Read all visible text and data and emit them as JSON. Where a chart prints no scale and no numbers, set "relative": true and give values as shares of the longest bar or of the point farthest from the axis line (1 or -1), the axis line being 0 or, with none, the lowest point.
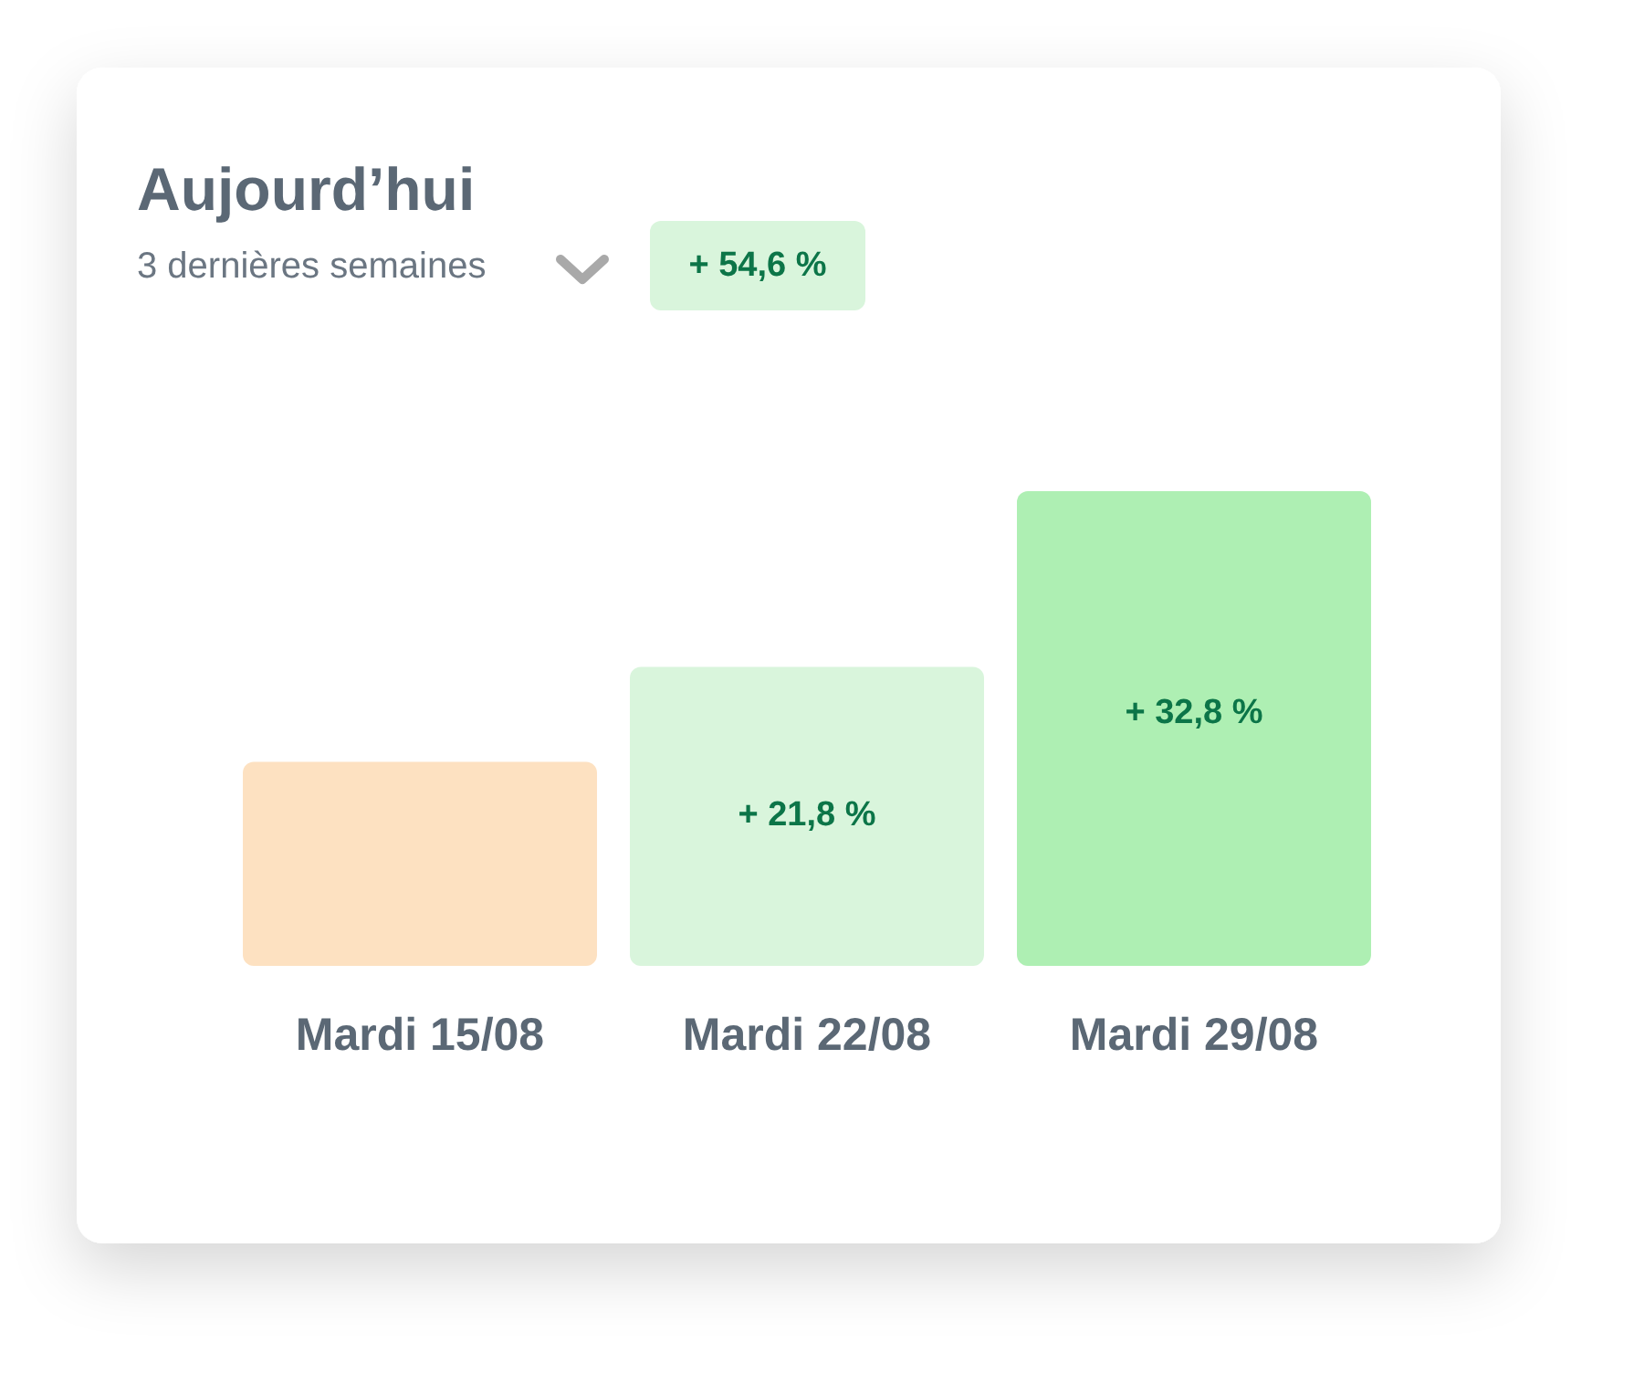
{
  "chart_data": {
    "type": "bar",
    "title": "Aujourd’hui",
    "subtitle": "3 dernières semaines",
    "categories": [
      "Mardi 15/08",
      "Mardi 22/08",
      "Mardi 29/08"
    ],
    "values": [
      0.43,
      0.63,
      1
    ],
    "colors": [
      "#fde1c1",
      "#d9f5dc",
      "#aeefb3"
    ],
    "relative": true,
    "annotations": [
      "+ 54,6 %",
      "+ 21,8 %",
      "+ 32,8 %"
    ]
  }
}
